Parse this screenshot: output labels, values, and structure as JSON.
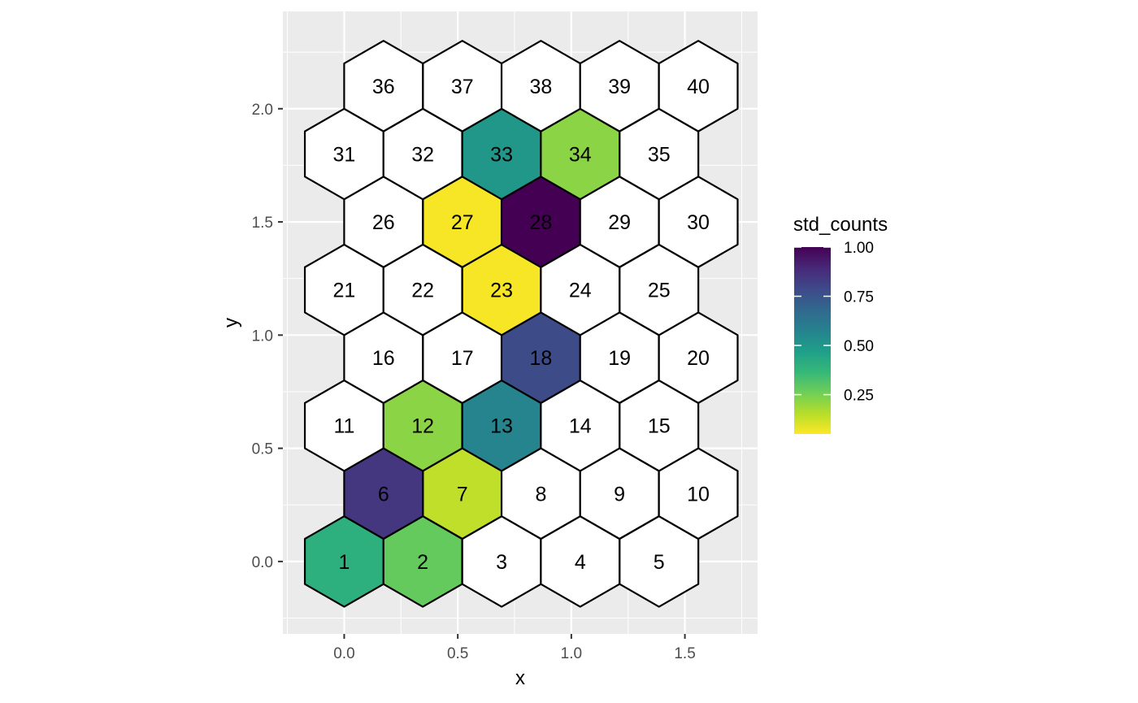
{
  "chart_data": {
    "type": "heatmap",
    "subtype": "hexagonal-grid",
    "xlabel": "x",
    "ylabel": "y",
    "x_ticks": [
      0.0,
      0.5,
      1.0,
      1.5
    ],
    "x_tick_labels": [
      "0.0",
      "0.5",
      "1.0",
      "1.5"
    ],
    "y_ticks": [
      0.0,
      0.5,
      1.0,
      1.5,
      2.0
    ],
    "y_tick_labels": [
      "0.0",
      "0.5",
      "1.0",
      "1.5",
      "2.0"
    ],
    "xlim": [
      -0.27,
      1.82
    ],
    "ylim": [
      -0.32,
      2.43
    ],
    "grid": true,
    "hex_radius": 0.2,
    "legend": {
      "title": "std_counts",
      "position": "right",
      "range": [
        0.05,
        1.0
      ],
      "ticks": [
        1.0,
        0.75,
        0.5,
        0.25
      ],
      "tick_labels": [
        "1.00",
        "0.75",
        "0.50",
        "0.25"
      ],
      "palette": "viridis (reversed)",
      "colors": [
        "#fde725",
        "#b5de2b",
        "#6ece58",
        "#35b779",
        "#1f9e89",
        "#26828e",
        "#31688e",
        "#3e4989",
        "#482878",
        "#440154"
      ]
    },
    "hexes": [
      {
        "id": "1",
        "x": 0.0,
        "y": 0.0,
        "value": 0.4
      },
      {
        "id": "2",
        "x": 0.346,
        "y": 0.0,
        "value": 0.28
      },
      {
        "id": "3",
        "x": 0.693,
        "y": 0.0,
        "value": null
      },
      {
        "id": "4",
        "x": 1.039,
        "y": 0.0,
        "value": null
      },
      {
        "id": "5",
        "x": 1.386,
        "y": 0.0,
        "value": null
      },
      {
        "id": "6",
        "x": 0.173,
        "y": 0.3,
        "value": 0.85
      },
      {
        "id": "7",
        "x": 0.52,
        "y": 0.3,
        "value": 0.14
      },
      {
        "id": "8",
        "x": 0.866,
        "y": 0.3,
        "value": null
      },
      {
        "id": "9",
        "x": 1.212,
        "y": 0.3,
        "value": null
      },
      {
        "id": "10",
        "x": 1.559,
        "y": 0.3,
        "value": null
      },
      {
        "id": "11",
        "x": 0.0,
        "y": 0.6,
        "value": null
      },
      {
        "id": "12",
        "x": 0.346,
        "y": 0.6,
        "value": 0.22
      },
      {
        "id": "13",
        "x": 0.693,
        "y": 0.6,
        "value": 0.57
      },
      {
        "id": "14",
        "x": 1.039,
        "y": 0.6,
        "value": null
      },
      {
        "id": "15",
        "x": 1.386,
        "y": 0.6,
        "value": null
      },
      {
        "id": "16",
        "x": 0.173,
        "y": 0.9,
        "value": null
      },
      {
        "id": "17",
        "x": 0.52,
        "y": 0.9,
        "value": null
      },
      {
        "id": "18",
        "x": 0.866,
        "y": 0.9,
        "value": 0.78
      },
      {
        "id": "19",
        "x": 1.212,
        "y": 0.9,
        "value": null
      },
      {
        "id": "20",
        "x": 1.559,
        "y": 0.9,
        "value": null
      },
      {
        "id": "21",
        "x": 0.0,
        "y": 1.2,
        "value": null
      },
      {
        "id": "22",
        "x": 0.346,
        "y": 1.2,
        "value": null
      },
      {
        "id": "23",
        "x": 0.693,
        "y": 1.2,
        "value": 0.06
      },
      {
        "id": "24",
        "x": 1.039,
        "y": 1.2,
        "value": null
      },
      {
        "id": "25",
        "x": 1.386,
        "y": 1.2,
        "value": null
      },
      {
        "id": "26",
        "x": 0.173,
        "y": 1.5,
        "value": null
      },
      {
        "id": "27",
        "x": 0.52,
        "y": 1.5,
        "value": 0.06
      },
      {
        "id": "28",
        "x": 0.866,
        "y": 1.5,
        "value": 1.0
      },
      {
        "id": "29",
        "x": 1.212,
        "y": 1.5,
        "value": null
      },
      {
        "id": "30",
        "x": 1.559,
        "y": 1.5,
        "value": null
      },
      {
        "id": "31",
        "x": 0.0,
        "y": 1.8,
        "value": null
      },
      {
        "id": "32",
        "x": 0.346,
        "y": 1.8,
        "value": null
      },
      {
        "id": "33",
        "x": 0.693,
        "y": 1.8,
        "value": 0.5
      },
      {
        "id": "34",
        "x": 1.039,
        "y": 1.8,
        "value": 0.22
      },
      {
        "id": "35",
        "x": 1.386,
        "y": 1.8,
        "value": null
      },
      {
        "id": "36",
        "x": 0.173,
        "y": 2.1,
        "value": null
      },
      {
        "id": "37",
        "x": 0.52,
        "y": 2.1,
        "value": null
      },
      {
        "id": "38",
        "x": 0.866,
        "y": 2.1,
        "value": null
      },
      {
        "id": "39",
        "x": 1.212,
        "y": 2.1,
        "value": null
      },
      {
        "id": "40",
        "x": 1.559,
        "y": 2.1,
        "value": null
      }
    ]
  },
  "colors": {
    "panel_background": "#ebebeb",
    "grid_major": "#ffffff",
    "empty_hex": "#ffffff",
    "hex_border": "#000000"
  }
}
